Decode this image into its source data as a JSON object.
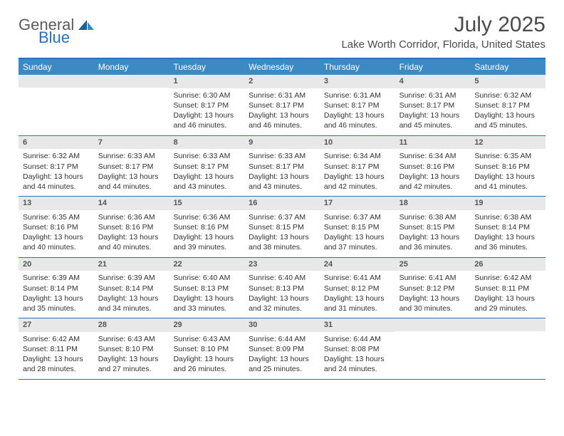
{
  "logo": {
    "general": "General",
    "blue": "Blue"
  },
  "title": "July 2025",
  "location": "Lake Worth Corridor, Florida, United States",
  "colors": {
    "header_bar": "#3b8ac4",
    "border": "#2c6fb5",
    "daynum_bg": "#e8e8e8",
    "text": "#333333",
    "title_text": "#4a4a4a"
  },
  "weekdays": [
    "Sunday",
    "Monday",
    "Tuesday",
    "Wednesday",
    "Thursday",
    "Friday",
    "Saturday"
  ],
  "weeks": [
    [
      null,
      null,
      {
        "n": "1",
        "sr": "6:30 AM",
        "ss": "8:17 PM",
        "dl": "13 hours and 46 minutes."
      },
      {
        "n": "2",
        "sr": "6:31 AM",
        "ss": "8:17 PM",
        "dl": "13 hours and 46 minutes."
      },
      {
        "n": "3",
        "sr": "6:31 AM",
        "ss": "8:17 PM",
        "dl": "13 hours and 46 minutes."
      },
      {
        "n": "4",
        "sr": "6:31 AM",
        "ss": "8:17 PM",
        "dl": "13 hours and 45 minutes."
      },
      {
        "n": "5",
        "sr": "6:32 AM",
        "ss": "8:17 PM",
        "dl": "13 hours and 45 minutes."
      }
    ],
    [
      {
        "n": "6",
        "sr": "6:32 AM",
        "ss": "8:17 PM",
        "dl": "13 hours and 44 minutes."
      },
      {
        "n": "7",
        "sr": "6:33 AM",
        "ss": "8:17 PM",
        "dl": "13 hours and 44 minutes."
      },
      {
        "n": "8",
        "sr": "6:33 AM",
        "ss": "8:17 PM",
        "dl": "13 hours and 43 minutes."
      },
      {
        "n": "9",
        "sr": "6:33 AM",
        "ss": "8:17 PM",
        "dl": "13 hours and 43 minutes."
      },
      {
        "n": "10",
        "sr": "6:34 AM",
        "ss": "8:17 PM",
        "dl": "13 hours and 42 minutes."
      },
      {
        "n": "11",
        "sr": "6:34 AM",
        "ss": "8:16 PM",
        "dl": "13 hours and 42 minutes."
      },
      {
        "n": "12",
        "sr": "6:35 AM",
        "ss": "8:16 PM",
        "dl": "13 hours and 41 minutes."
      }
    ],
    [
      {
        "n": "13",
        "sr": "6:35 AM",
        "ss": "8:16 PM",
        "dl": "13 hours and 40 minutes."
      },
      {
        "n": "14",
        "sr": "6:36 AM",
        "ss": "8:16 PM",
        "dl": "13 hours and 40 minutes."
      },
      {
        "n": "15",
        "sr": "6:36 AM",
        "ss": "8:16 PM",
        "dl": "13 hours and 39 minutes."
      },
      {
        "n": "16",
        "sr": "6:37 AM",
        "ss": "8:15 PM",
        "dl": "13 hours and 38 minutes."
      },
      {
        "n": "17",
        "sr": "6:37 AM",
        "ss": "8:15 PM",
        "dl": "13 hours and 37 minutes."
      },
      {
        "n": "18",
        "sr": "6:38 AM",
        "ss": "8:15 PM",
        "dl": "13 hours and 36 minutes."
      },
      {
        "n": "19",
        "sr": "6:38 AM",
        "ss": "8:14 PM",
        "dl": "13 hours and 36 minutes."
      }
    ],
    [
      {
        "n": "20",
        "sr": "6:39 AM",
        "ss": "8:14 PM",
        "dl": "13 hours and 35 minutes."
      },
      {
        "n": "21",
        "sr": "6:39 AM",
        "ss": "8:14 PM",
        "dl": "13 hours and 34 minutes."
      },
      {
        "n": "22",
        "sr": "6:40 AM",
        "ss": "8:13 PM",
        "dl": "13 hours and 33 minutes."
      },
      {
        "n": "23",
        "sr": "6:40 AM",
        "ss": "8:13 PM",
        "dl": "13 hours and 32 minutes."
      },
      {
        "n": "24",
        "sr": "6:41 AM",
        "ss": "8:12 PM",
        "dl": "13 hours and 31 minutes."
      },
      {
        "n": "25",
        "sr": "6:41 AM",
        "ss": "8:12 PM",
        "dl": "13 hours and 30 minutes."
      },
      {
        "n": "26",
        "sr": "6:42 AM",
        "ss": "8:11 PM",
        "dl": "13 hours and 29 minutes."
      }
    ],
    [
      {
        "n": "27",
        "sr": "6:42 AM",
        "ss": "8:11 PM",
        "dl": "13 hours and 28 minutes."
      },
      {
        "n": "28",
        "sr": "6:43 AM",
        "ss": "8:10 PM",
        "dl": "13 hours and 27 minutes."
      },
      {
        "n": "29",
        "sr": "6:43 AM",
        "ss": "8:10 PM",
        "dl": "13 hours and 26 minutes."
      },
      {
        "n": "30",
        "sr": "6:44 AM",
        "ss": "8:09 PM",
        "dl": "13 hours and 25 minutes."
      },
      {
        "n": "31",
        "sr": "6:44 AM",
        "ss": "8:08 PM",
        "dl": "13 hours and 24 minutes."
      },
      null,
      null
    ]
  ],
  "labels": {
    "sunrise_prefix": "Sunrise: ",
    "sunset_prefix": "Sunset: ",
    "daylight_prefix": "Daylight: "
  }
}
